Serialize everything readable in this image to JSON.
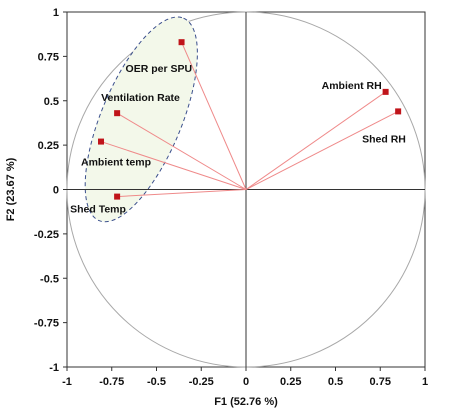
{
  "chart_data": {
    "type": "scatter",
    "subtype": "correlation-circle",
    "title": "",
    "xlabel": "F1 (52.76 %)",
    "ylabel": "F2 (23.67 %)",
    "xlim": [
      -1,
      1
    ],
    "ylim": [
      -1,
      1
    ],
    "x_ticks": [
      "-1",
      "-0.75",
      "-0.5",
      "-0.25",
      "0",
      "0.25",
      "0.5",
      "0.75",
      "1"
    ],
    "y_ticks": [
      "1",
      "0.75",
      "0.5",
      "0.25",
      "0",
      "-0.25",
      "-0.5",
      "-0.75",
      "-1"
    ],
    "grid": false,
    "unit_circle": true,
    "points": [
      {
        "label": "OER per SPU",
        "x": -0.36,
        "y": 0.83
      },
      {
        "label": "Ventilation Rate",
        "x": -0.72,
        "y": 0.43
      },
      {
        "label": "Ambient temp",
        "x": -0.81,
        "y": 0.27
      },
      {
        "label": "Shed Temp",
        "x": -0.72,
        "y": -0.04
      },
      {
        "label": "Ambient RH",
        "x": 0.78,
        "y": 0.55
      },
      {
        "label": "Shed RH",
        "x": 0.85,
        "y": 0.44
      }
    ],
    "colors": {
      "marker": "#c0141a",
      "vector": "#ef8a8a",
      "circle": "#a8a8a8",
      "cluster_fill": "#f3f8ea",
      "cluster_outline": "#3a4f8c"
    }
  }
}
